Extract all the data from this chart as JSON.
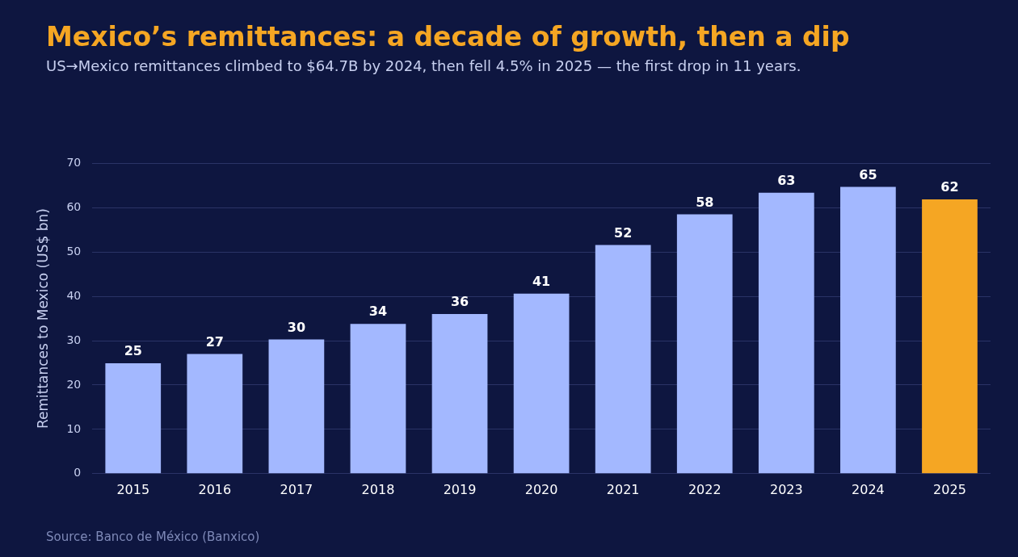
{
  "chart_data": {
    "type": "bar",
    "title": "Mexico’s remittances: a decade of growth, then a dip",
    "subtitle": "US→Mexico remittances climbed to $64.7B by 2024, then fell 4.5% in 2025 — the first drop in 11 years.",
    "ylabel": "Remittances to Mexico (US$ bn)",
    "categories": [
      "2015",
      "2016",
      "2017",
      "2018",
      "2019",
      "2020",
      "2021",
      "2022",
      "2023",
      "2024",
      "2025"
    ],
    "values": [
      24.9,
      27.0,
      30.3,
      33.8,
      36.0,
      40.6,
      51.6,
      58.5,
      63.4,
      64.7,
      61.9
    ],
    "colors": [
      "#a3b8ff",
      "#a3b8ff",
      "#a3b8ff",
      "#a3b8ff",
      "#a3b8ff",
      "#a3b8ff",
      "#a3b8ff",
      "#a3b8ff",
      "#a3b8ff",
      "#a3b8ff",
      "#f5a623"
    ],
    "value_labels": [
      "25",
      "27",
      "30",
      "34",
      "36",
      "41",
      "52",
      "58",
      "63",
      "65",
      "62"
    ],
    "ylim": [
      0,
      70
    ],
    "yticks": [
      0,
      10,
      20,
      30,
      40,
      50,
      60,
      70
    ],
    "grid": "y",
    "legend": false,
    "annotations": [
      "Source: Banco de México (Banxico)"
    ]
  }
}
